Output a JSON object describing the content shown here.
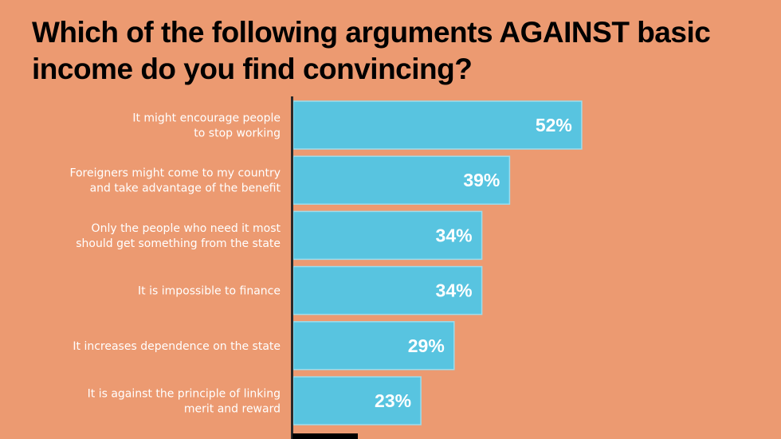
{
  "chart_data": {
    "type": "bar",
    "orientation": "horizontal",
    "title": "Which of the following arguments AGAINST basic income do you find convincing?",
    "categories": [
      [
        "It might encourage people",
        "to stop working"
      ],
      [
        "Foreigners might come to my country",
        "and take advantage of the benefit"
      ],
      [
        "Only the people who need it most",
        "should get something from the state"
      ],
      [
        "It is impossible to finance"
      ],
      [
        "It increases dependence on the state"
      ],
      [
        "It is against the principle of linking",
        "merit and reward"
      ]
    ],
    "values": [
      52,
      39,
      34,
      34,
      29,
      23
    ],
    "value_labels": [
      "52%",
      "39%",
      "34%",
      "34%",
      "29%",
      "23%"
    ],
    "unit": "%",
    "xlim": [
      0,
      100
    ],
    "colors": {
      "background": "#EC9A71",
      "bar": "#58C4E0",
      "bar_edge": "#9BDDEE",
      "axis": "#2A2A2A",
      "text": "#FFFFFF",
      "title": "#000000"
    }
  }
}
